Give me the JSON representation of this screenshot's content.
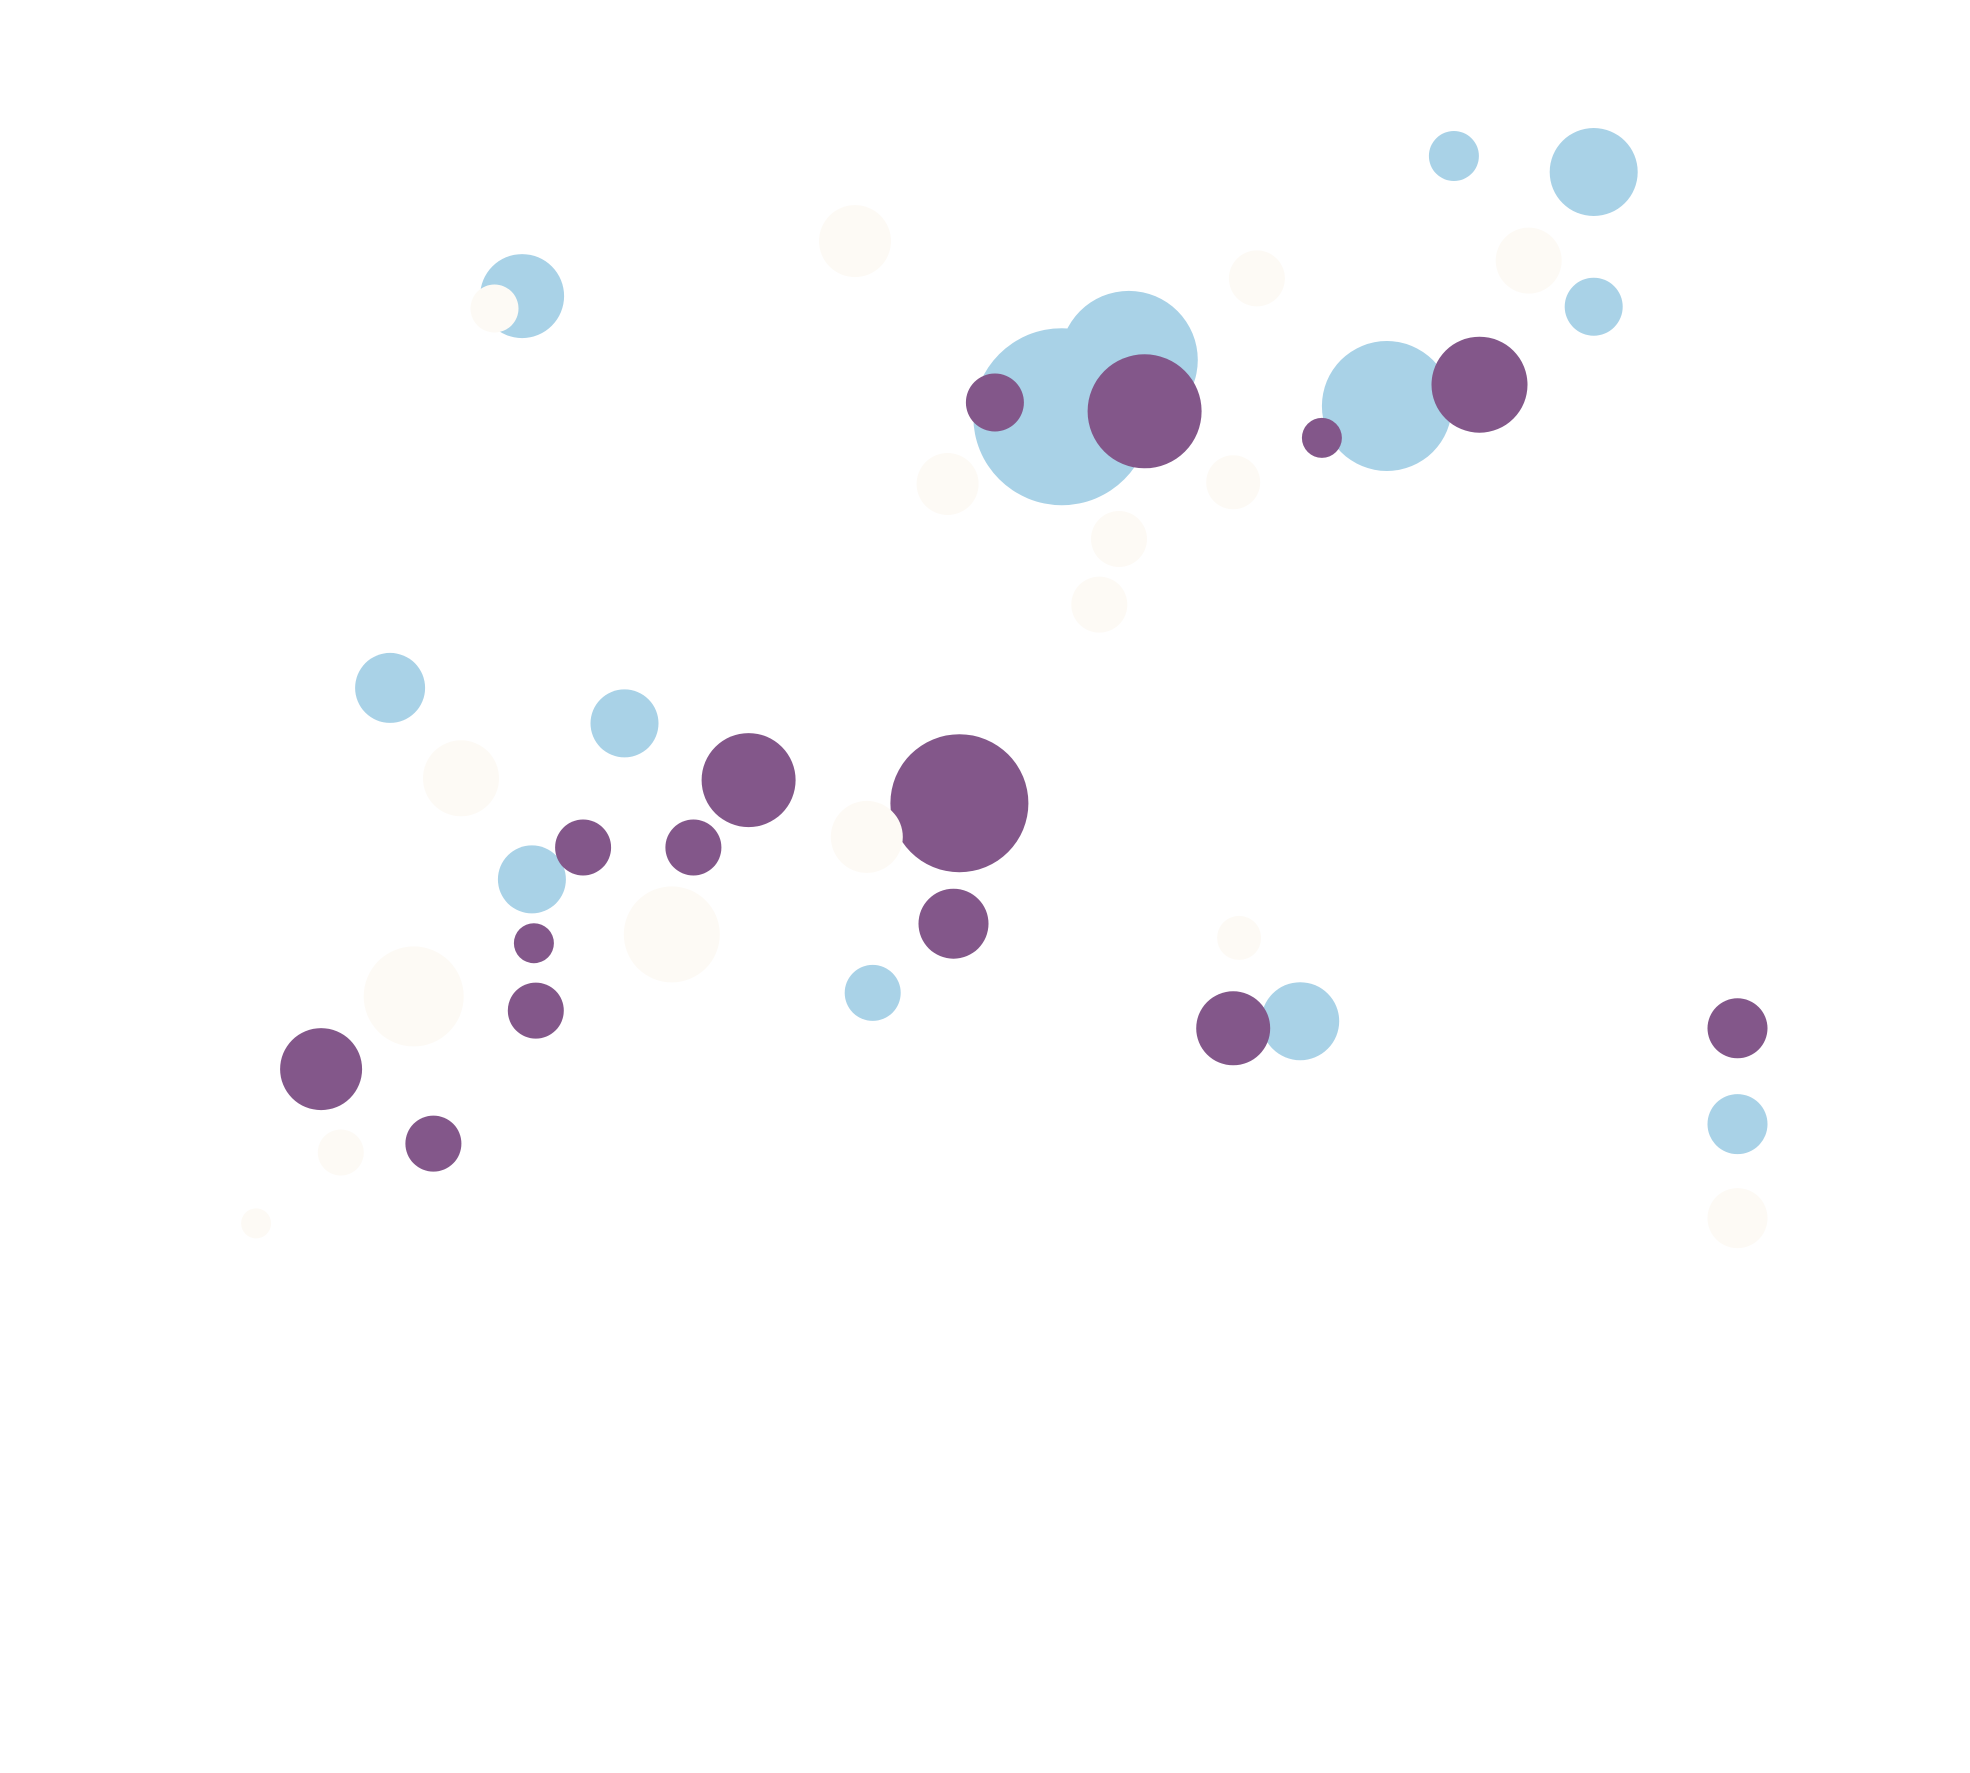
{
  "chart_data": {
    "type": "scatter",
    "title": "",
    "xlabel": "",
    "ylabel": "",
    "grid": false,
    "legend": "none",
    "xlim": [
      0,
      100
    ],
    "ylim": [
      0,
      100
    ],
    "series": [
      {
        "color": "#a9d2e7",
        "points": [
          {
            "x": 26.5,
            "y": 83.3,
            "size": 84
          },
          {
            "x": 19.8,
            "y": 61.2,
            "size": 70
          },
          {
            "x": 57.3,
            "y": 79.7,
            "size": 138
          },
          {
            "x": 53.9,
            "y": 76.5,
            "size": 177
          },
          {
            "x": 70.4,
            "y": 77.1,
            "size": 130
          },
          {
            "x": 80.9,
            "y": 90.3,
            "size": 88
          },
          {
            "x": 73.8,
            "y": 91.2,
            "size": 50
          },
          {
            "x": 80.9,
            "y": 82.7,
            "size": 58
          },
          {
            "x": 31.7,
            "y": 59.2,
            "size": 68
          },
          {
            "x": 27.0,
            "y": 50.4,
            "size": 68
          },
          {
            "x": 44.3,
            "y": 44.0,
            "size": 56
          },
          {
            "x": 66.0,
            "y": 42.4,
            "size": 78
          },
          {
            "x": 88.2,
            "y": 36.6,
            "size": 60
          }
        ]
      },
      {
        "color": "#83578a",
        "points": [
          {
            "x": 48.7,
            "y": 54.7,
            "size": 138
          },
          {
            "x": 38.0,
            "y": 56.0,
            "size": 94
          },
          {
            "x": 29.6,
            "y": 52.2,
            "size": 56
          },
          {
            "x": 35.2,
            "y": 52.2,
            "size": 56
          },
          {
            "x": 27.1,
            "y": 46.8,
            "size": 40
          },
          {
            "x": 27.2,
            "y": 43.0,
            "size": 56
          },
          {
            "x": 16.3,
            "y": 39.7,
            "size": 82
          },
          {
            "x": 22.0,
            "y": 35.5,
            "size": 56
          },
          {
            "x": 58.1,
            "y": 76.8,
            "size": 114
          },
          {
            "x": 50.5,
            "y": 77.3,
            "size": 58
          },
          {
            "x": 75.1,
            "y": 78.3,
            "size": 96
          },
          {
            "x": 67.1,
            "y": 75.3,
            "size": 40
          },
          {
            "x": 48.4,
            "y": 47.9,
            "size": 70
          },
          {
            "x": 62.6,
            "y": 42.0,
            "size": 74
          },
          {
            "x": 88.2,
            "y": 42.0,
            "size": 60
          }
        ]
      },
      {
        "color": "#fdfaf5",
        "points": [
          {
            "x": 43.4,
            "y": 86.4,
            "size": 72
          },
          {
            "x": 25.1,
            "y": 82.6,
            "size": 48
          },
          {
            "x": 63.8,
            "y": 84.3,
            "size": 56
          },
          {
            "x": 77.6,
            "y": 85.3,
            "size": 66
          },
          {
            "x": 48.1,
            "y": 72.7,
            "size": 62
          },
          {
            "x": 62.6,
            "y": 72.8,
            "size": 54
          },
          {
            "x": 56.8,
            "y": 69.6,
            "size": 56
          },
          {
            "x": 55.8,
            "y": 65.9,
            "size": 56
          },
          {
            "x": 44.0,
            "y": 52.8,
            "size": 72
          },
          {
            "x": 23.4,
            "y": 56.1,
            "size": 76
          },
          {
            "x": 34.1,
            "y": 47.3,
            "size": 96
          },
          {
            "x": 21.0,
            "y": 43.8,
            "size": 100
          },
          {
            "x": 62.9,
            "y": 47.1,
            "size": 44
          },
          {
            "x": 17.3,
            "y": 35.0,
            "size": 46
          },
          {
            "x": 13.0,
            "y": 31.0,
            "size": 30
          },
          {
            "x": 88.2,
            "y": 31.3,
            "size": 60
          }
        ]
      }
    ]
  }
}
